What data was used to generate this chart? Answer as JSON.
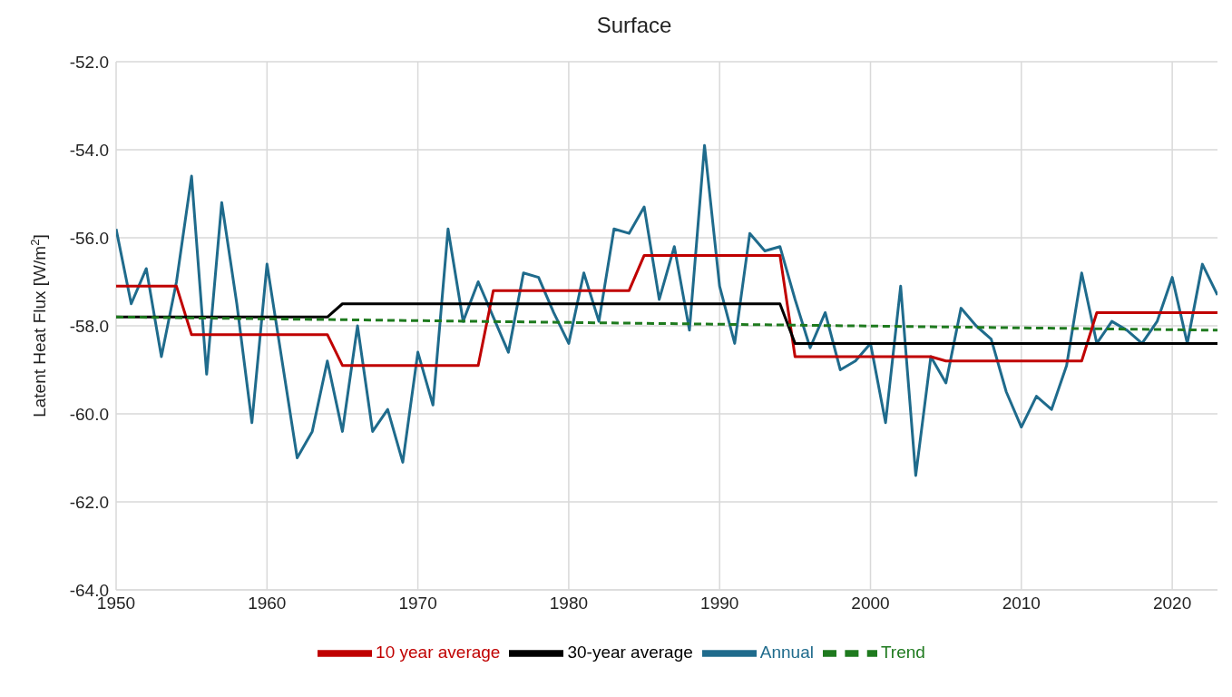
{
  "chart_data": {
    "type": "line",
    "title": "Surface",
    "ylabel": "Latent Heat Flux [W/m$^{2}$]",
    "x": [
      1950,
      1951,
      1952,
      1953,
      1954,
      1955,
      1956,
      1957,
      1958,
      1959,
      1960,
      1961,
      1962,
      1963,
      1964,
      1965,
      1966,
      1967,
      1968,
      1969,
      1970,
      1971,
      1972,
      1973,
      1974,
      1975,
      1976,
      1977,
      1978,
      1979,
      1980,
      1981,
      1982,
      1983,
      1984,
      1985,
      1986,
      1987,
      1988,
      1989,
      1990,
      1991,
      1992,
      1993,
      1994,
      1995,
      1996,
      1997,
      1998,
      1999,
      2000,
      2001,
      2002,
      2003,
      2004,
      2005,
      2006,
      2007,
      2008,
      2009,
      2010,
      2011,
      2012,
      2013,
      2014,
      2015,
      2016,
      2017,
      2018,
      2019,
      2020,
      2021,
      2022,
      2023
    ],
    "series": [
      {
        "name": "Annual",
        "color": "#1f6b8c",
        "values": [
          -55.8,
          -57.5,
          -56.7,
          -58.7,
          -57.0,
          -54.6,
          -59.1,
          -55.2,
          -57.5,
          -60.2,
          -56.6,
          -58.8,
          -61.0,
          -60.4,
          -58.8,
          -60.4,
          -58.0,
          -60.4,
          -59.9,
          -61.1,
          -58.6,
          -59.8,
          -55.8,
          -57.9,
          -57.0,
          -57.8,
          -58.6,
          -56.8,
          -56.9,
          -57.7,
          -58.4,
          -56.8,
          -57.9,
          -55.8,
          -55.9,
          -55.3,
          -57.4,
          -56.2,
          -58.1,
          -53.9,
          -57.1,
          -58.4,
          -55.9,
          -56.3,
          -56.2,
          -57.4,
          -58.5,
          -57.7,
          -59.0,
          -58.8,
          -58.4,
          -60.2,
          -57.1,
          -61.4,
          -58.7,
          -59.3,
          -57.6,
          -58.0,
          -58.3,
          -59.5,
          -60.3,
          -59.6,
          -59.9,
          -58.9,
          -56.8,
          -58.4,
          -57.9,
          -58.1,
          -58.4,
          -57.9,
          -56.9,
          -58.4,
          -56.6,
          -57.3
        ]
      },
      {
        "name": "10 year average",
        "color": "#c00000",
        "values": [
          -57.1,
          -57.1,
          -57.1,
          -57.1,
          -57.1,
          -58.2,
          -58.2,
          -58.2,
          -58.2,
          -58.2,
          -58.2,
          -58.2,
          -58.2,
          -58.2,
          -58.2,
          -58.9,
          -58.9,
          -58.9,
          -58.9,
          -58.9,
          -58.9,
          -58.9,
          -58.9,
          -58.9,
          -58.9,
          -57.2,
          -57.2,
          -57.2,
          -57.2,
          -57.2,
          -57.2,
          -57.2,
          -57.2,
          -57.2,
          -57.2,
          -56.4,
          -56.4,
          -56.4,
          -56.4,
          -56.4,
          -56.4,
          -56.4,
          -56.4,
          -56.4,
          -56.4,
          -58.7,
          -58.7,
          -58.7,
          -58.7,
          -58.7,
          -58.7,
          -58.7,
          -58.7,
          -58.7,
          -58.7,
          -58.8,
          -58.8,
          -58.8,
          -58.8,
          -58.8,
          -58.8,
          -58.8,
          -58.8,
          -58.8,
          -58.8,
          -57.7,
          -57.7,
          -57.7,
          -57.7,
          -57.7,
          -57.7,
          -57.7,
          -57.7,
          -57.7
        ]
      },
      {
        "name": "30-year average",
        "color": "#000000",
        "values": [
          -57.8,
          -57.8,
          -57.8,
          -57.8,
          -57.8,
          -57.8,
          -57.8,
          -57.8,
          -57.8,
          -57.8,
          -57.8,
          -57.8,
          -57.8,
          -57.8,
          -57.8,
          -57.5,
          -57.5,
          -57.5,
          -57.5,
          -57.5,
          -57.5,
          -57.5,
          -57.5,
          -57.5,
          -57.5,
          -57.5,
          -57.5,
          -57.5,
          -57.5,
          -57.5,
          -57.5,
          -57.5,
          -57.5,
          -57.5,
          -57.5,
          -57.5,
          -57.5,
          -57.5,
          -57.5,
          -57.5,
          -57.5,
          -57.5,
          -57.5,
          -57.5,
          -57.5,
          -58.4,
          -58.4,
          -58.4,
          -58.4,
          -58.4,
          -58.4,
          -58.4,
          -58.4,
          -58.4,
          -58.4,
          -58.4,
          -58.4,
          -58.4,
          -58.4,
          -58.4,
          -58.4,
          -58.4,
          -58.4,
          -58.4,
          -58.4,
          -58.4,
          -58.4,
          -58.4,
          -58.4,
          -58.4,
          -58.4,
          -58.4,
          -58.4,
          -58.4
        ]
      },
      {
        "name": "Trend",
        "type": "line",
        "color": "#1e7a1e",
        "line_style": "dashed",
        "x": [
          1950,
          2023
        ],
        "values": [
          -57.8,
          -58.1
        ]
      }
    ],
    "xlim": [
      1950,
      2023
    ],
    "xticks": [
      1950,
      1960,
      1970,
      1980,
      1990,
      2000,
      2010,
      2020
    ],
    "ylim": [
      -64,
      -52
    ],
    "yticks": [
      {
        "value": -64,
        "label": "-64.0"
      },
      {
        "value": -62,
        "label": "-62.0"
      },
      {
        "value": -60,
        "label": "-60.0"
      },
      {
        "value": -58,
        "label": "-58.0"
      },
      {
        "value": -56,
        "label": "-56.0"
      },
      {
        "value": -54,
        "label": "-54.0"
      },
      {
        "value": -52,
        "label": "-52.0"
      }
    ],
    "grid": true,
    "legend": "bottom",
    "marker": "none",
    "line_style": "solid"
  }
}
